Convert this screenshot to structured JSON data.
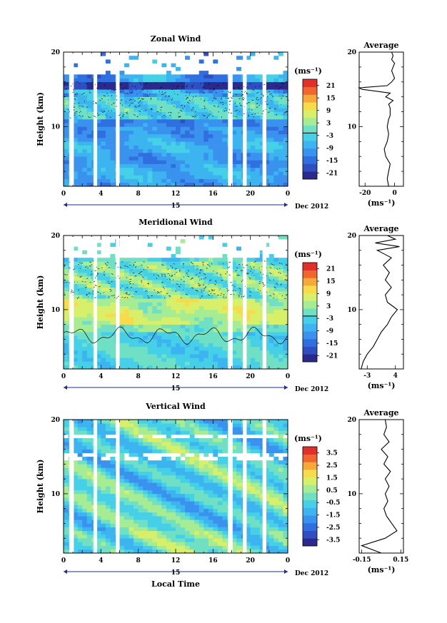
{
  "palette": [
    "#2b2a8c",
    "#2f4fc0",
    "#2f6fe0",
    "#3a92ef",
    "#3cb4f0",
    "#45d0e8",
    "#6fe0c4",
    "#a6ec92",
    "#d8ef6a",
    "#f6dc4a",
    "#f7a83a",
    "#f0662e",
    "#e0302a"
  ],
  "contour_color": "#000000",
  "gap_color": "#ffffff",
  "shared": {
    "xlabel": "Local Time",
    "date_label": "Dec 2012",
    "day_label": "15",
    "x_ticks": [
      "0",
      "4",
      "8",
      "12",
      "16",
      "20",
      "0"
    ],
    "y_ticks": [
      "20",
      "10"
    ],
    "y_label": "Height (km)",
    "unit_label": "(ms⁻¹)",
    "avg_title": "Average"
  },
  "chart_data": [
    {
      "type": "heatmap",
      "title": "Zonal Wind",
      "ylabel": "Height (km)",
      "xlabel": "",
      "x_range_hours": [
        0,
        24
      ],
      "y_range_km": [
        2,
        20
      ],
      "colorbar_ticks": [
        "21",
        "15",
        "9",
        "3",
        "-3",
        "-9",
        "-15",
        "-21"
      ],
      "colorbar_range": [
        -24,
        24
      ],
      "profile": {
        "title": "Average",
        "xlabel": "(ms⁻¹)",
        "x_ticks": [
          "-20",
          "0"
        ],
        "xlim": [
          -24,
          6
        ],
        "height_km": [
          2,
          3,
          4,
          5,
          6,
          7,
          8,
          9,
          10,
          11,
          11.5,
          12,
          12.5,
          13,
          13.5,
          14,
          14.5,
          15,
          15.2,
          15.5,
          16,
          16.5,
          17,
          17.5,
          18,
          18.5,
          19,
          19.5,
          20
        ],
        "values": [
          -4,
          -5,
          -4,
          -3,
          -6,
          -7,
          -5,
          -4,
          -5,
          -4,
          -3,
          -3,
          -3,
          -4,
          -1,
          -6,
          -3,
          -22,
          -24,
          -5,
          -2,
          0,
          -1,
          -2,
          -1,
          0,
          -2,
          -1,
          -2
        ]
      }
    },
    {
      "type": "heatmap",
      "title": "Meridional Wind",
      "ylabel": "Height (km)",
      "xlabel": "",
      "x_range_hours": [
        0,
        24
      ],
      "y_range_km": [
        2,
        20
      ],
      "colorbar_ticks": [
        "21",
        "15",
        "9",
        "3",
        "-3",
        "-9",
        "-15",
        "-21"
      ],
      "colorbar_range": [
        -24,
        24
      ],
      "profile": {
        "title": "Average",
        "xlabel": "(ms⁻¹)",
        "x_ticks": [
          "-3",
          "4"
        ],
        "xlim": [
          -5,
          6
        ],
        "height_km": [
          2,
          3,
          4,
          5,
          6,
          7,
          8,
          9,
          10,
          11,
          12,
          13,
          14,
          15,
          16,
          17,
          18,
          18.5,
          19,
          19.5,
          20
        ],
        "values": [
          -4.5,
          -4,
          -3,
          -1.5,
          -0.5,
          0.5,
          2,
          3,
          4.5,
          2,
          1.5,
          3,
          1.5,
          2.5,
          1,
          3,
          -0.5,
          5,
          -1,
          4,
          2
        ]
      }
    },
    {
      "type": "heatmap",
      "title": "Vertical Wind",
      "ylabel": "Height (km)",
      "xlabel": "Local Time",
      "x_range_hours": [
        0,
        24
      ],
      "y_range_km": [
        2,
        20
      ],
      "colorbar_ticks": [
        "3.5",
        "2.5",
        "1.5",
        "0.5",
        "-0.5",
        "-1.5",
        "-2.5",
        "-3.5"
      ],
      "colorbar_range": [
        -4,
        4
      ],
      "profile": {
        "title": "Average",
        "xlabel": "(ms⁻¹)",
        "x_ticks": [
          "-0.15",
          "0.15"
        ],
        "xlim": [
          -0.17,
          0.17
        ],
        "height_km": [
          2,
          3,
          4,
          5,
          6,
          7,
          8,
          9,
          10,
          11,
          12,
          13,
          14,
          15,
          16,
          17,
          18,
          19,
          20
        ],
        "values": [
          0,
          -0.15,
          0.03,
          0.12,
          0.08,
          0.04,
          0.02,
          0.05,
          0.03,
          0.06,
          0.03,
          0.07,
          0.02,
          0.05,
          0.0,
          0.06,
          0.02,
          0.04,
          0.03
        ]
      }
    }
  ]
}
